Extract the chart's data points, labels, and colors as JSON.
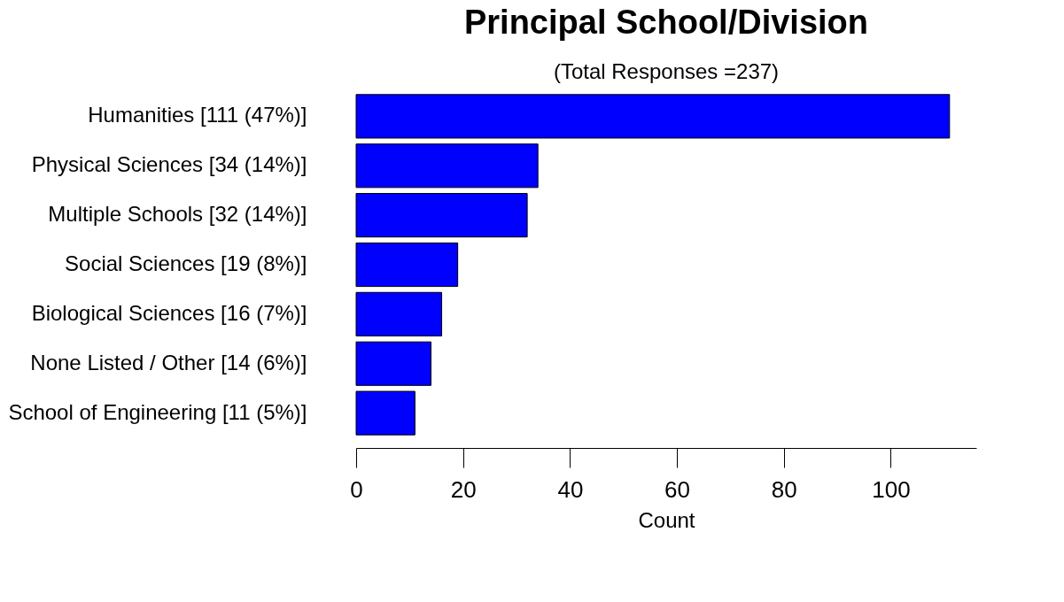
{
  "chart_data": {
    "type": "bar",
    "orientation": "horizontal",
    "title": "Principal School/Division",
    "subtitle": "(Total Responses =237)",
    "xlabel": "Count",
    "categories": [
      "Humanities [111 (47%)]",
      "Physical Sciences [34 (14%)]",
      "Multiple Schools [32 (14%)]",
      "Social Sciences [19 (8%)]",
      "Biological Sciences [16 (7%)]",
      "None Listed / Other [14 (6%)]",
      "School of Engineering [11 (5%)]"
    ],
    "values": [
      111,
      34,
      32,
      19,
      16,
      14,
      11
    ],
    "color": "#0000ff",
    "xlim": [
      0,
      116
    ],
    "xticks": [
      0,
      20,
      40,
      60,
      80,
      100
    ]
  }
}
